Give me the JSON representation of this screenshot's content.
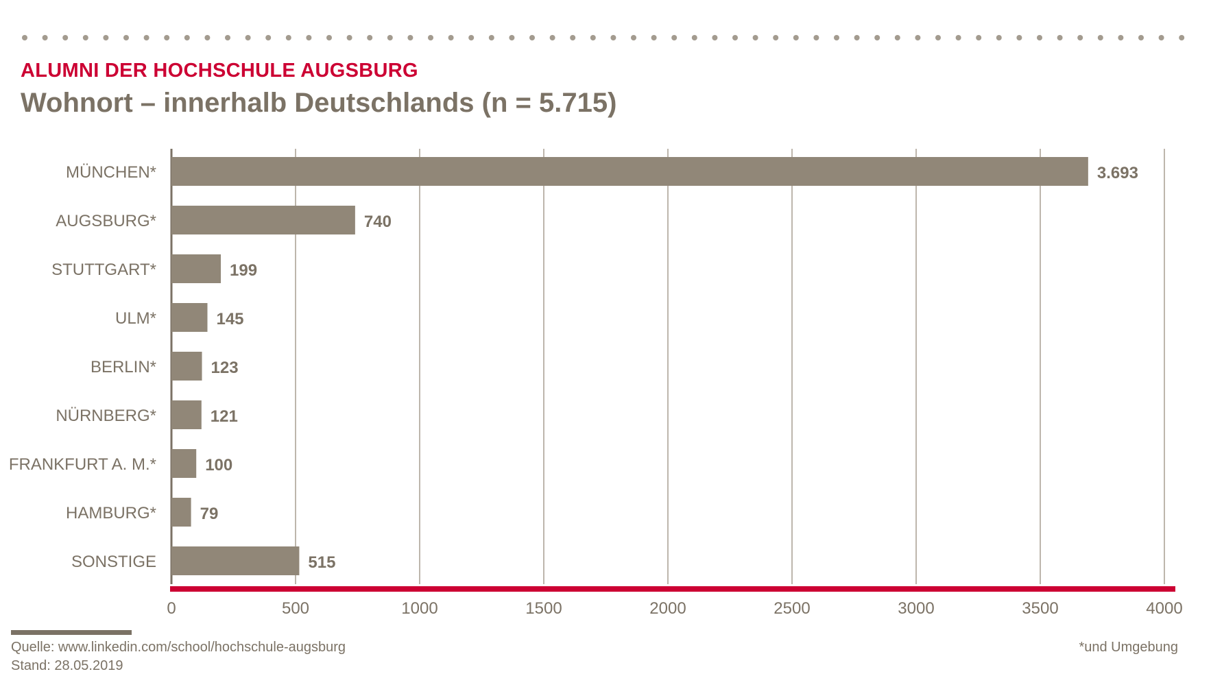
{
  "header": {
    "supertitle": "ALUMNI DER HOCHSCHULE AUGSBURG",
    "title": "Wohnort – innerhalb Deutschlands (n = 5.715)"
  },
  "footer": {
    "source": "Quelle: www.linkedin.com/school/hochschule-augsburg",
    "stand": "Stand: 28.05.2019",
    "footnote": "*und Umgebung"
  },
  "colors": {
    "accent": "#cc0033",
    "bar": "#918778",
    "text": "#7b7265",
    "grid": "#bdb6ac",
    "dots": "#a39b8f"
  },
  "chart_data": {
    "type": "bar",
    "orientation": "horizontal",
    "categories": [
      "MÜNCHEN*",
      "AUGSBURG*",
      "STUTTGART*",
      "ULM*",
      "BERLIN*",
      "NÜRNBERG*",
      "FRANKFURT A. M.*",
      "HAMBURG*",
      "SONSTIGE"
    ],
    "values": [
      3693,
      740,
      199,
      145,
      123,
      121,
      100,
      79,
      515
    ],
    "value_labels": [
      "3.693",
      "740",
      "199",
      "145",
      "123",
      "121",
      "100",
      "79",
      "515"
    ],
    "xlim": [
      0,
      4000
    ],
    "x_ticks": [
      0,
      500,
      1000,
      1500,
      2000,
      2500,
      3000,
      3500,
      4000
    ],
    "grid": true
  }
}
